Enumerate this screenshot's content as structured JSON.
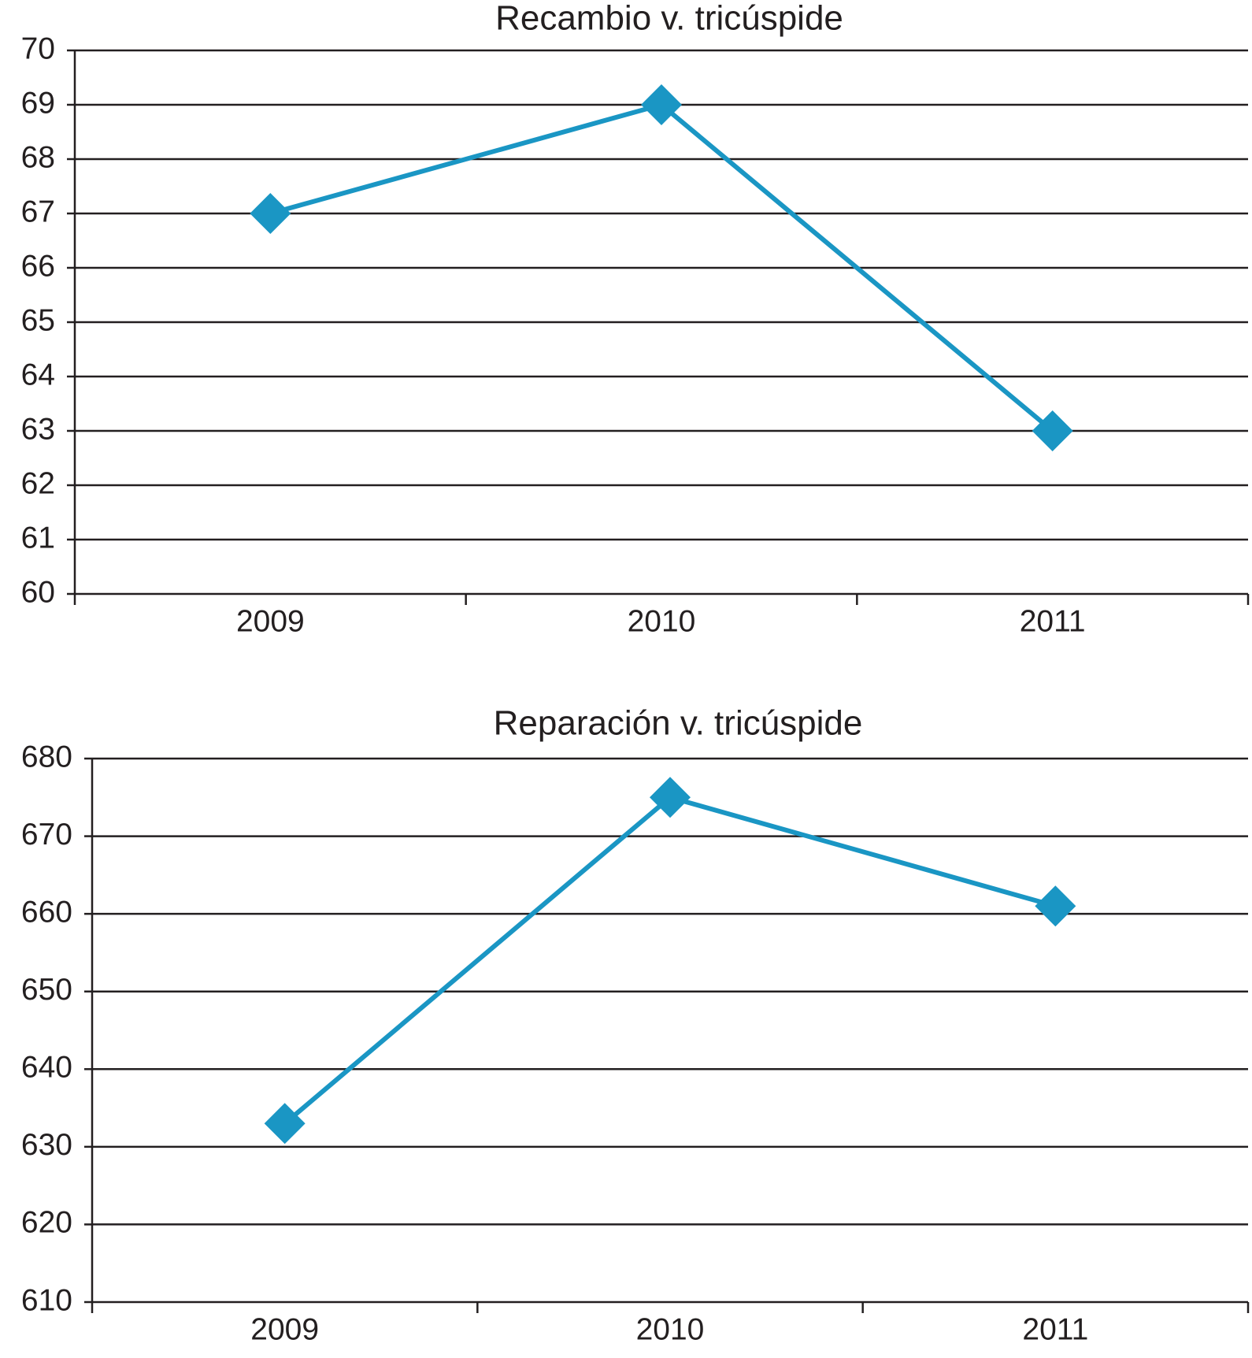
{
  "chart_data": [
    {
      "type": "line",
      "title": "Recambio  v. tricúspide",
      "categories": [
        "2009",
        "2010",
        "2011"
      ],
      "values": [
        67,
        69,
        63
      ],
      "color": "#1a96c4",
      "ylim": [
        60,
        70
      ],
      "yticks": [
        60,
        61,
        62,
        63,
        64,
        65,
        66,
        67,
        68,
        69,
        70
      ],
      "grid": true
    },
    {
      "type": "line",
      "title": "Reparación v. tricúspide",
      "categories": [
        "2009",
        "2010",
        "2011"
      ],
      "values": [
        633,
        675,
        661
      ],
      "color": "#1a96c4",
      "ylim": [
        610,
        680
      ],
      "yticks": [
        610,
        620,
        630,
        640,
        650,
        660,
        670,
        680
      ],
      "grid": true
    }
  ]
}
